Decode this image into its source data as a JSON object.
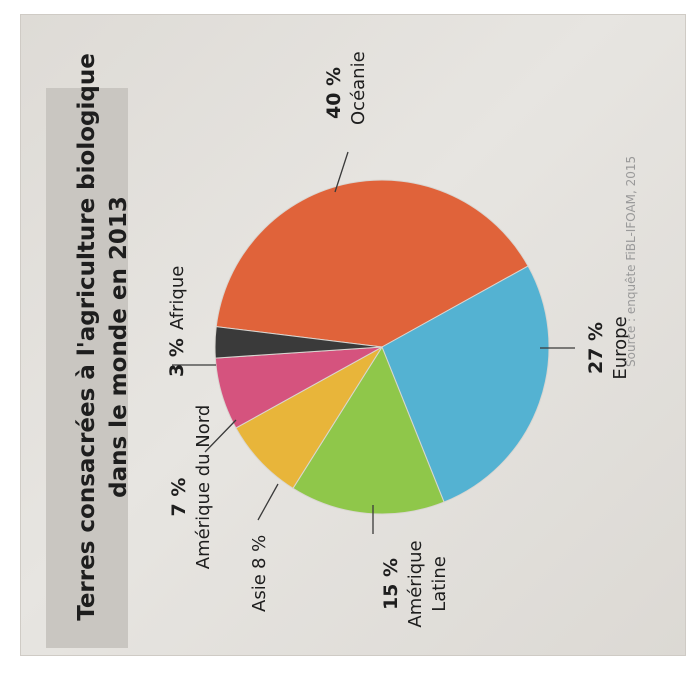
{
  "chart_data": {
    "type": "pie",
    "title_line1": "Terres consacrées à l'agriculture biologique",
    "title_line2": "dans le monde en 2013",
    "source": "Source : enquête FiBL-IFOAM, 2015",
    "slices": [
      {
        "pct": "40 %",
        "value": 40,
        "name": "Océanie",
        "color": "#e0633a"
      },
      {
        "pct": "27 %",
        "value": 27,
        "name": "Europe",
        "color": "#54b2d2"
      },
      {
        "pct": "15 %",
        "value": 15,
        "name1": "Amérique",
        "name2": "Latine",
        "color": "#8fc74a"
      },
      {
        "pct": "8 %",
        "value": 8,
        "name": "Asie",
        "color": "#e8b53a"
      },
      {
        "pct": "7 %",
        "value": 7,
        "name": "Amérique du Nord",
        "color": "#d5537e"
      },
      {
        "pct": "3 %",
        "value": 3,
        "name": "Afrique",
        "color": "#3a3a3a"
      }
    ]
  }
}
